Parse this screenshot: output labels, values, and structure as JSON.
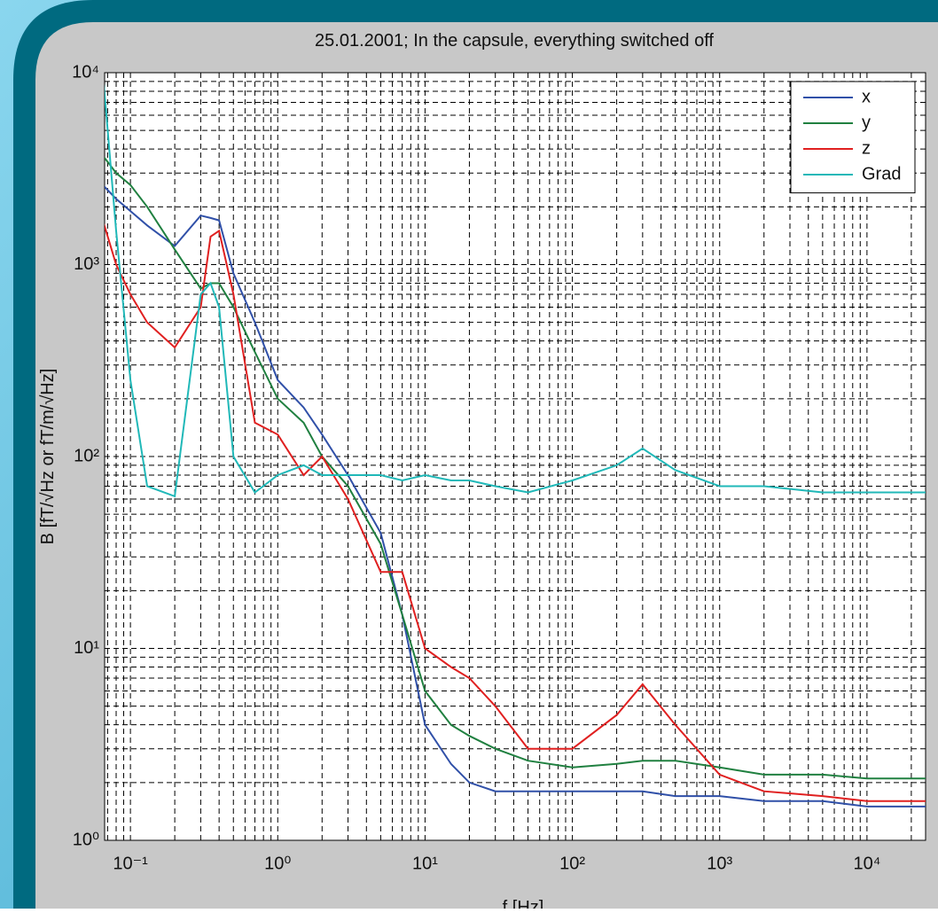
{
  "chart_data": {
    "type": "line",
    "title": "25.01.2001; In the capsule, everything switched off",
    "x_label": "f [Hz]",
    "y_label": "B [fT/√Hz or fT/m/√Hz]",
    "x_log": true,
    "y_log": true,
    "grid": true,
    "minor_grid": true,
    "legend": "upper right",
    "xlim": [
      0.0668,
      25000
    ],
    "ylim": [
      1,
      10000
    ],
    "xticks": [
      {
        "value": 0.1,
        "label": "10⁻¹"
      },
      {
        "value": 1,
        "label": "10⁰"
      },
      {
        "value": 10,
        "label": "10¹"
      },
      {
        "value": 100,
        "label": "10²"
      },
      {
        "value": 1000,
        "label": "10³"
      },
      {
        "value": 10000,
        "label": "10⁴"
      }
    ],
    "yticks": [
      {
        "value": 1,
        "label": "10⁰"
      },
      {
        "value": 10,
        "label": "10¹"
      },
      {
        "value": 100,
        "label": "10²"
      },
      {
        "value": 1000,
        "label": "10³"
      },
      {
        "value": 10000,
        "label": "10⁴"
      }
    ],
    "x": [
      0.065,
      0.08,
      0.1,
      0.13,
      0.2,
      0.3,
      0.35,
      0.4,
      0.5,
      0.7,
      1,
      1.5,
      2,
      3,
      5,
      7,
      10,
      15,
      20,
      30,
      50,
      100,
      200,
      300,
      500,
      1000,
      2000,
      5000,
      10000,
      25000
    ],
    "series": [
      {
        "name": "x",
        "color": "#3050a8",
        "values": [
          2600,
          2200,
          1900,
          1600,
          1250,
          1800,
          1750,
          1700,
          900,
          500,
          250,
          180,
          130,
          80,
          40,
          15,
          4,
          2.5,
          2,
          1.8,
          1.8,
          1.8,
          1.8,
          1.8,
          1.7,
          1.7,
          1.6,
          1.6,
          1.5,
          1.5
        ]
      },
      {
        "name": "y",
        "color": "#208040",
        "values": [
          3700,
          3000,
          2600,
          2000,
          1200,
          750,
          800,
          800,
          600,
          350,
          200,
          150,
          100,
          70,
          35,
          15,
          6,
          4,
          3.5,
          3,
          2.6,
          2.4,
          2.5,
          2.6,
          2.6,
          2.4,
          2.2,
          2.2,
          2.1,
          2.1
        ]
      },
      {
        "name": "z",
        "color": "#e02020",
        "values": [
          1700,
          1000,
          700,
          500,
          370,
          600,
          1400,
          1500,
          700,
          150,
          130,
          80,
          100,
          60,
          25,
          25,
          10,
          8,
          7,
          5,
          3,
          3,
          4.5,
          6.5,
          4,
          2.2,
          1.8,
          1.7,
          1.6,
          1.6
        ]
      },
      {
        "name": "Grad",
        "color": "#20b8b8",
        "values": [
          10000,
          1500,
          250,
          70,
          62,
          700,
          800,
          600,
          100,
          65,
          80,
          90,
          80,
          80,
          80,
          75,
          80,
          75,
          75,
          70,
          65,
          75,
          90,
          110,
          85,
          70,
          70,
          65,
          65,
          65
        ]
      }
    ]
  }
}
